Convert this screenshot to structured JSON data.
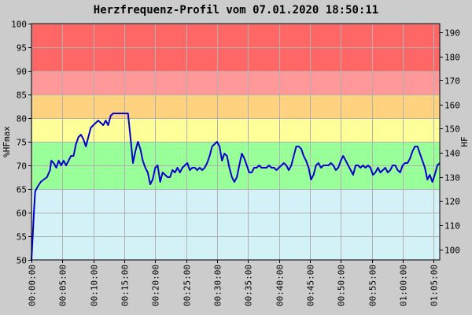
{
  "chart_data": {
    "type": "line",
    "title": "Herzfrequenz-Profil vom 07.01.2020 18:50:11",
    "ylabel_left": "%HFmax",
    "ylabel_right": "HF",
    "ylim_left": [
      50,
      100
    ],
    "ylim_right": [
      95.6,
      193.6
    ],
    "yticks_left": [
      50,
      55,
      60,
      65,
      70,
      75,
      80,
      85,
      90,
      95,
      100
    ],
    "yticks_right": [
      100,
      110,
      120,
      130,
      140,
      150,
      160,
      170,
      180,
      190
    ],
    "x_unit": "minutes",
    "xlim": [
      0,
      66
    ],
    "xticks": [
      {
        "value": 0,
        "label": "00:00:00"
      },
      {
        "value": 5,
        "label": "00:05:00"
      },
      {
        "value": 10,
        "label": "00:10:00"
      },
      {
        "value": 15,
        "label": "00:15:00"
      },
      {
        "value": 20,
        "label": "00:20:00"
      },
      {
        "value": 25,
        "label": "00:25:00"
      },
      {
        "value": 30,
        "label": "00:30:00"
      },
      {
        "value": 35,
        "label": "00:35:00"
      },
      {
        "value": 40,
        "label": "00:40:00"
      },
      {
        "value": 45,
        "label": "00:45:00"
      },
      {
        "value": 50,
        "label": "00:50:00"
      },
      {
        "value": 55,
        "label": "00:55:00"
      },
      {
        "value": 60,
        "label": "01:00:00"
      },
      {
        "value": 65,
        "label": "01:05:00"
      }
    ],
    "zones": [
      {
        "from": 50,
        "to": 65,
        "color": "#d2f2f8"
      },
      {
        "from": 65,
        "to": 75,
        "color": "#99ff99"
      },
      {
        "from": 75,
        "to": 80,
        "color": "#ffff99"
      },
      {
        "from": 80,
        "to": 85,
        "color": "#ffd280"
      },
      {
        "from": 85,
        "to": 90,
        "color": "#ff9999"
      },
      {
        "from": 90,
        "to": 100,
        "color": "#ff6666"
      }
    ],
    "grid": true,
    "series": [
      {
        "color": "#0000cc",
        "points": [
          [
            0,
            50
          ],
          [
            0.2,
            55
          ],
          [
            0.4,
            60
          ],
          [
            0.6,
            64.5
          ],
          [
            1,
            65.5
          ],
          [
            1.5,
            66.5
          ],
          [
            2,
            67
          ],
          [
            2.5,
            67.5
          ],
          [
            3,
            69
          ],
          [
            3.2,
            71
          ],
          [
            3.6,
            70.5
          ],
          [
            4,
            69.5
          ],
          [
            4.4,
            71
          ],
          [
            4.8,
            70
          ],
          [
            5.2,
            71
          ],
          [
            5.6,
            70
          ],
          [
            6,
            71
          ],
          [
            6.4,
            72
          ],
          [
            6.8,
            72
          ],
          [
            7.2,
            74.5
          ],
          [
            7.6,
            76
          ],
          [
            8,
            76.5
          ],
          [
            8.4,
            75.5
          ],
          [
            8.8,
            74
          ],
          [
            9.2,
            76
          ],
          [
            9.6,
            78
          ],
          [
            10,
            78.5
          ],
          [
            10.4,
            79
          ],
          [
            10.8,
            79.5
          ],
          [
            11.2,
            79
          ],
          [
            11.6,
            78.5
          ],
          [
            12,
            79.5
          ],
          [
            12.4,
            78.5
          ],
          [
            12.8,
            80.5
          ],
          [
            13.2,
            81
          ],
          [
            13.6,
            81
          ],
          [
            14,
            81
          ],
          [
            14.4,
            81
          ],
          [
            14.8,
            81
          ],
          [
            15.2,
            81
          ],
          [
            15.6,
            81
          ],
          [
            16,
            76
          ],
          [
            16.4,
            70.5
          ],
          [
            16.8,
            73
          ],
          [
            17.2,
            75
          ],
          [
            17.6,
            73.5
          ],
          [
            18,
            71
          ],
          [
            18.4,
            69.5
          ],
          [
            18.8,
            68.5
          ],
          [
            19.2,
            66
          ],
          [
            19.6,
            67
          ],
          [
            20,
            69.5
          ],
          [
            20.4,
            70
          ],
          [
            20.8,
            66.5
          ],
          [
            21.2,
            68.5
          ],
          [
            21.6,
            68
          ],
          [
            22,
            67.5
          ],
          [
            22.4,
            67.5
          ],
          [
            22.8,
            69
          ],
          [
            23.2,
            68.5
          ],
          [
            23.6,
            69.5
          ],
          [
            24,
            68.5
          ],
          [
            24.4,
            69.5
          ],
          [
            24.8,
            70
          ],
          [
            25.2,
            70.5
          ],
          [
            25.6,
            69
          ],
          [
            26,
            69.5
          ],
          [
            26.4,
            69.5
          ],
          [
            26.8,
            69
          ],
          [
            27.2,
            69.5
          ],
          [
            27.6,
            69
          ],
          [
            28,
            69.5
          ],
          [
            28.4,
            70.5
          ],
          [
            28.8,
            72
          ],
          [
            29.2,
            74
          ],
          [
            29.6,
            74.5
          ],
          [
            30,
            75
          ],
          [
            30.4,
            74
          ],
          [
            30.8,
            71
          ],
          [
            31.2,
            72.5
          ],
          [
            31.6,
            72
          ],
          [
            32,
            69.5
          ],
          [
            32.4,
            67.5
          ],
          [
            32.8,
            66.5
          ],
          [
            33.2,
            67.5
          ],
          [
            33.6,
            70
          ],
          [
            34,
            72.5
          ],
          [
            34.4,
            71.5
          ],
          [
            34.8,
            70
          ],
          [
            35.2,
            68.5
          ],
          [
            35.6,
            68.5
          ],
          [
            36,
            69.5
          ],
          [
            36.4,
            69.5
          ],
          [
            36.8,
            70
          ],
          [
            37.2,
            69.5
          ],
          [
            37.6,
            69.5
          ],
          [
            38,
            69.5
          ],
          [
            38.4,
            70
          ],
          [
            38.8,
            69.5
          ],
          [
            39.2,
            69.5
          ],
          [
            39.6,
            69
          ],
          [
            40,
            69.5
          ],
          [
            40.4,
            70
          ],
          [
            40.8,
            70.5
          ],
          [
            41.2,
            70
          ],
          [
            41.6,
            69
          ],
          [
            42,
            70
          ],
          [
            42.4,
            72
          ],
          [
            42.8,
            74
          ],
          [
            43.2,
            74
          ],
          [
            43.6,
            73.5
          ],
          [
            44,
            72
          ],
          [
            44.4,
            71
          ],
          [
            44.8,
            69.5
          ],
          [
            45.2,
            67
          ],
          [
            45.6,
            68
          ],
          [
            46,
            70
          ],
          [
            46.4,
            70.5
          ],
          [
            46.8,
            69.5
          ],
          [
            47.2,
            70
          ],
          [
            47.6,
            70
          ],
          [
            48,
            70
          ],
          [
            48.4,
            70.5
          ],
          [
            48.8,
            70
          ],
          [
            49.2,
            69
          ],
          [
            49.6,
            69.5
          ],
          [
            50,
            71
          ],
          [
            50.4,
            72
          ],
          [
            50.8,
            71
          ],
          [
            51.2,
            70
          ],
          [
            51.6,
            69
          ],
          [
            52,
            68
          ],
          [
            52.4,
            70
          ],
          [
            52.8,
            70
          ],
          [
            53.2,
            69.5
          ],
          [
            53.6,
            70
          ],
          [
            54,
            69.5
          ],
          [
            54.4,
            70
          ],
          [
            54.8,
            69.5
          ],
          [
            55.2,
            68
          ],
          [
            55.6,
            68.5
          ],
          [
            56,
            69.5
          ],
          [
            56.4,
            68.5
          ],
          [
            56.8,
            69
          ],
          [
            57.2,
            69.5
          ],
          [
            57.6,
            68.5
          ],
          [
            58,
            69
          ],
          [
            58.4,
            70
          ],
          [
            58.8,
            70
          ],
          [
            59.2,
            69
          ],
          [
            59.6,
            68.5
          ],
          [
            60,
            70
          ],
          [
            60.4,
            70.5
          ],
          [
            60.8,
            70.5
          ],
          [
            61.2,
            71.5
          ],
          [
            61.6,
            73
          ],
          [
            62,
            74
          ],
          [
            62.4,
            74
          ],
          [
            62.8,
            72.5
          ],
          [
            63.2,
            71
          ],
          [
            63.6,
            69.5
          ],
          [
            64,
            67
          ],
          [
            64.4,
            68
          ],
          [
            64.8,
            66.5
          ],
          [
            65.2,
            68
          ],
          [
            65.6,
            70
          ],
          [
            66,
            70.5
          ]
        ]
      }
    ]
  }
}
